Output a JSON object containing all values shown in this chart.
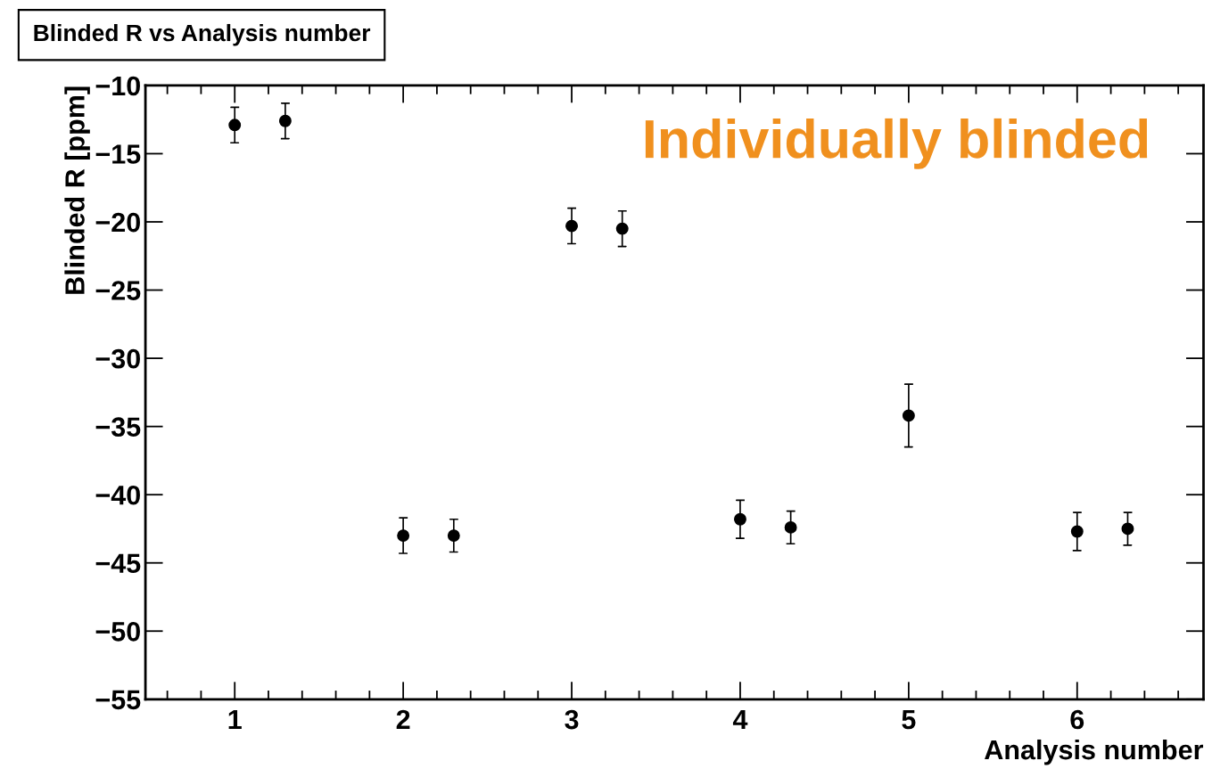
{
  "chart_data": {
    "type": "scatter",
    "title": "Blinded R vs Analysis number",
    "xlabel": "Analysis number",
    "ylabel": "Blinded R [ppm]",
    "annotations": [
      "Individually blinded"
    ],
    "x": [
      1,
      1.3,
      2,
      2.3,
      3,
      3.3,
      4,
      4.3,
      5,
      6,
      6.3
    ],
    "series": [
      {
        "color": "#000000",
        "values": [
          -12.9,
          -12.6,
          -43.0,
          -43.0,
          -20.3,
          -20.5,
          -41.8,
          -42.4,
          -34.2,
          -42.7,
          -42.5
        ],
        "errors": [
          1.3,
          1.3,
          1.3,
          1.2,
          1.3,
          1.3,
          1.4,
          1.2,
          2.3,
          1.4,
          1.2
        ]
      }
    ],
    "xlim": [
      0.47,
      6.75
    ],
    "ylim": [
      -55,
      -10
    ],
    "xticks": [
      1,
      2,
      3,
      4,
      5,
      6
    ],
    "yticks": [
      -55,
      -50,
      -45,
      -40,
      -35,
      -30,
      -25,
      -20,
      -15,
      -10
    ],
    "marker": "circle",
    "grid": false,
    "legend": false
  }
}
